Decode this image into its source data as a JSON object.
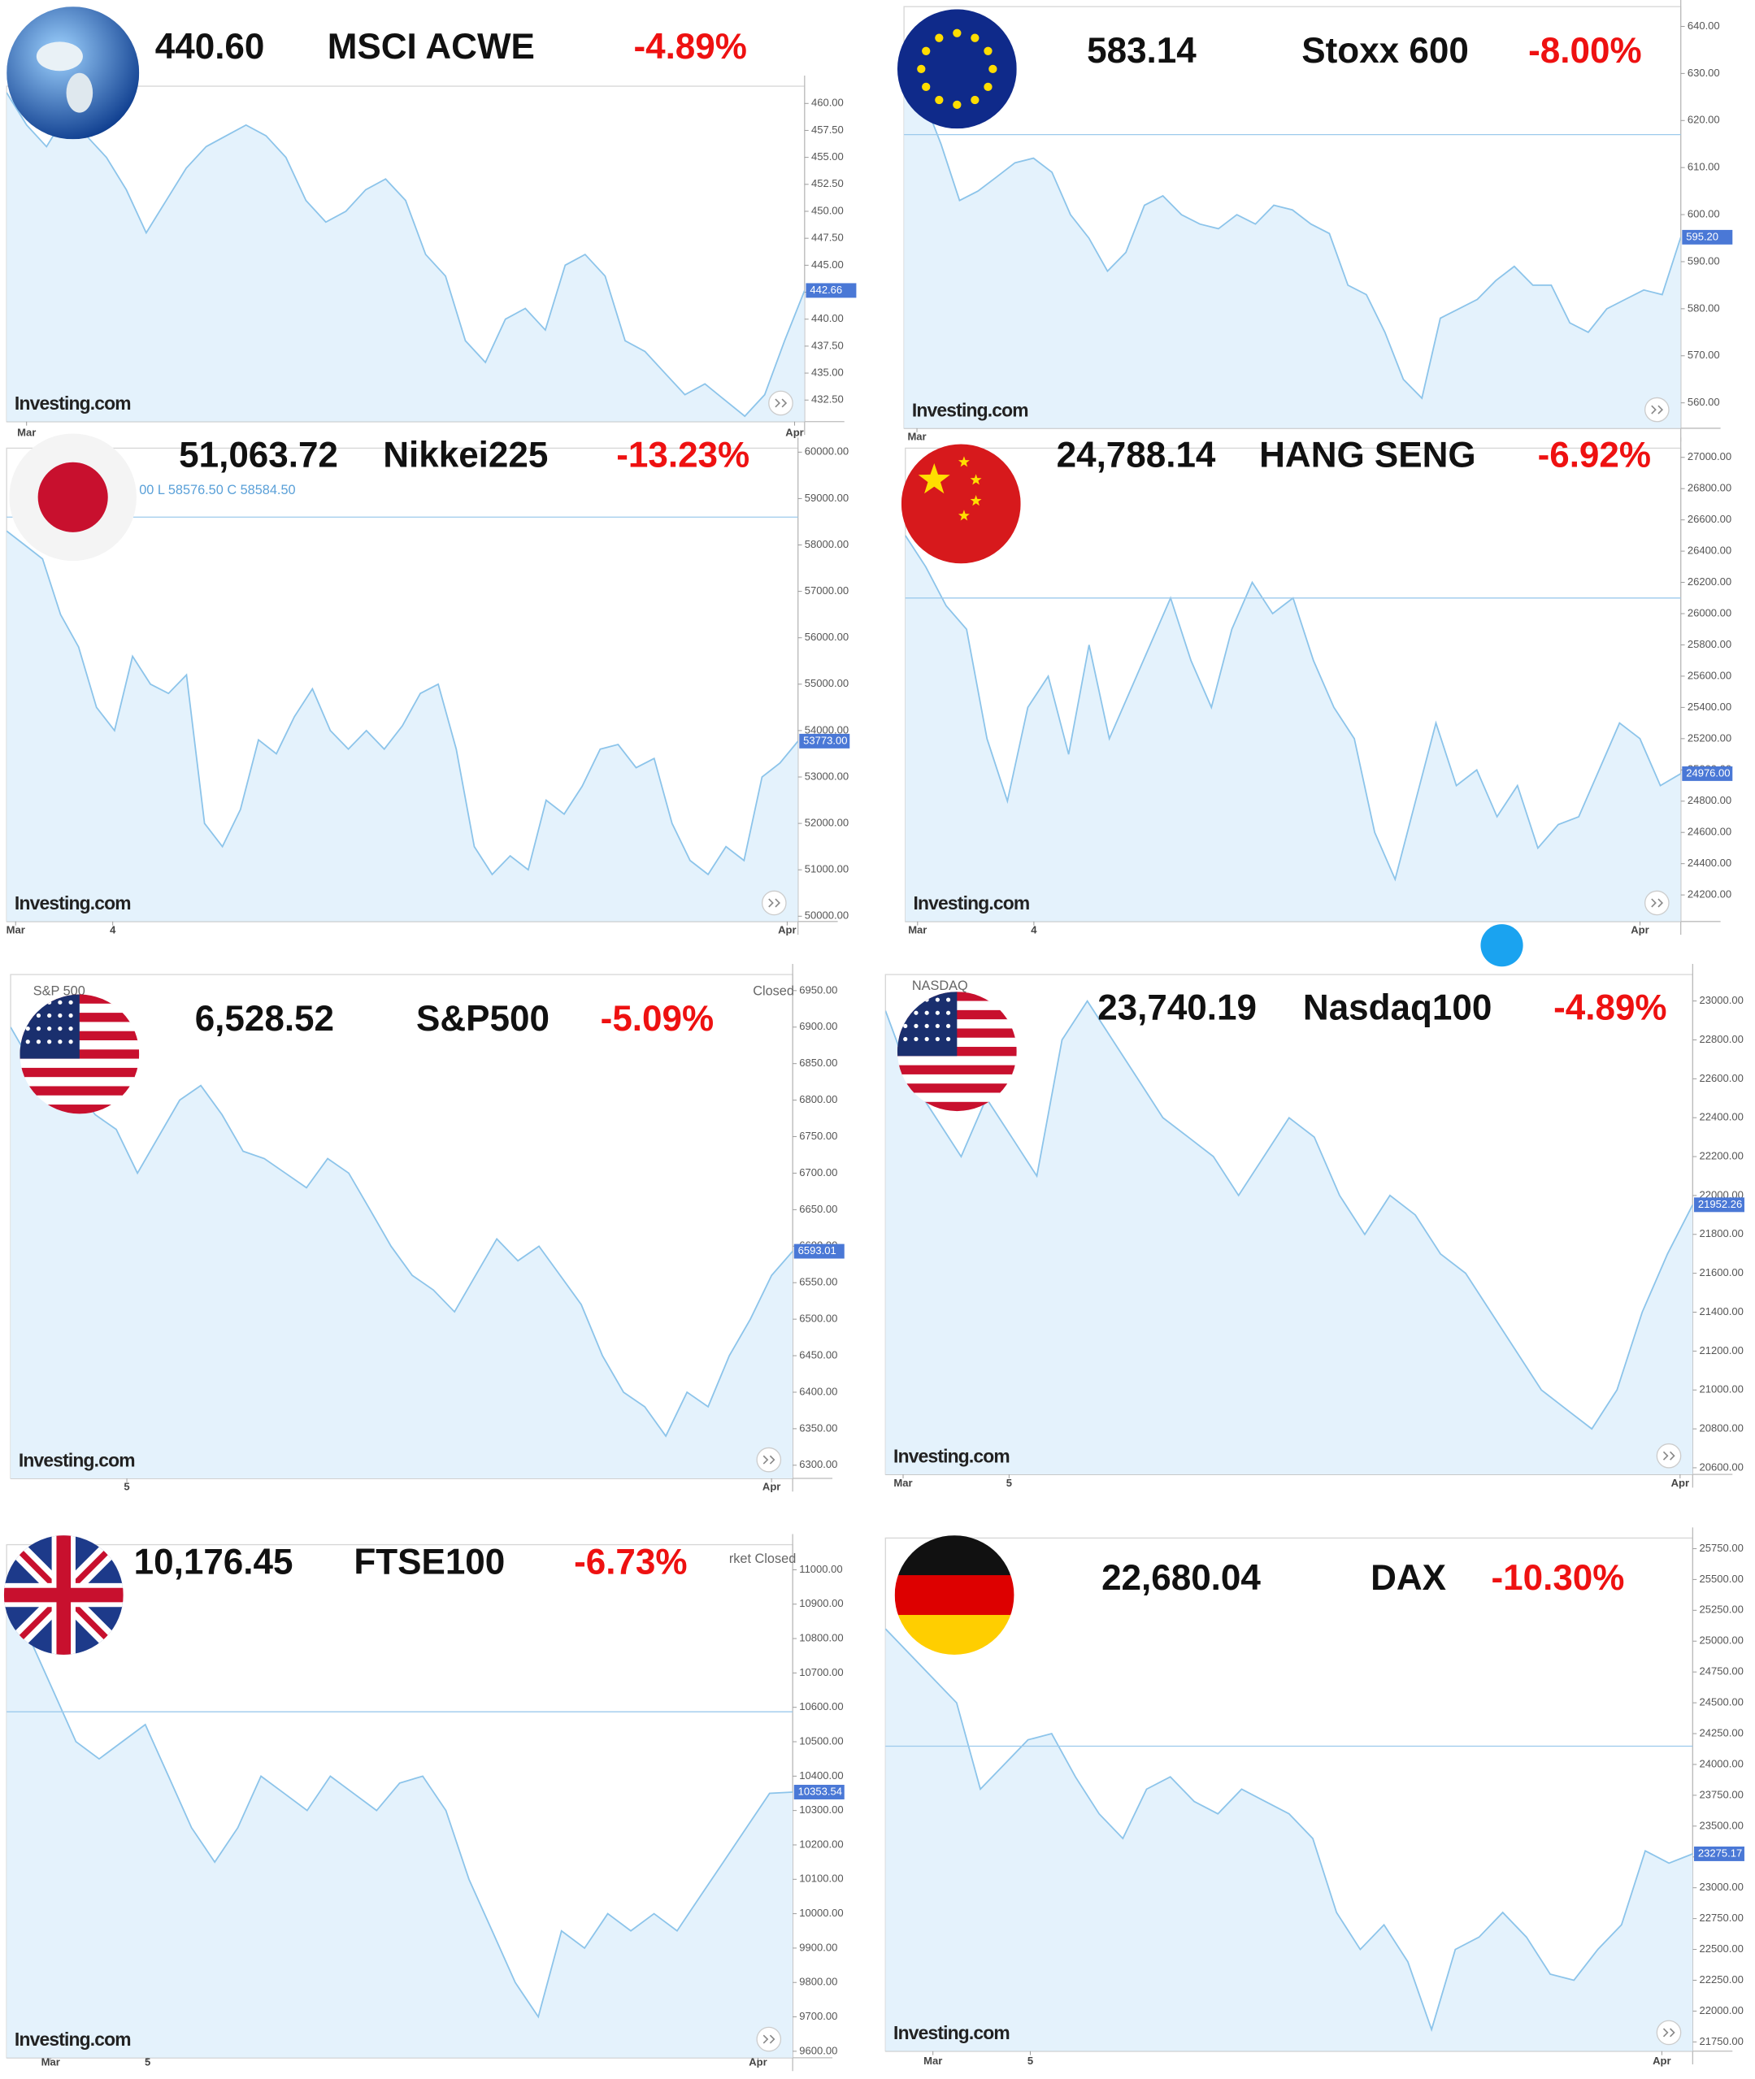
{
  "chart_data": [
    {
      "type": "area",
      "name": "MSCI ACWE",
      "price": "440.60",
      "change": "-4.89%",
      "source": "Investing.com",
      "values": [
        461,
        458,
        456,
        459,
        457,
        455,
        452,
        448,
        451,
        454,
        456,
        457,
        458,
        457,
        455,
        451,
        449,
        450,
        452,
        453,
        451,
        446,
        444,
        438,
        436,
        440,
        441,
        439,
        445,
        446,
        444,
        438,
        437,
        435,
        433,
        434,
        432.5,
        431,
        433,
        438,
        442.66
      ],
      "xlim": [
        0,
        40
      ],
      "xticks": [
        {
          "value": 1,
          "label": "Mar"
        },
        {
          "value": 39.5,
          "label": "Apr"
        }
      ],
      "ylim": [
        430.5,
        461.6
      ],
      "yticks": [
        {
          "value": 432.5,
          "label": "432.50"
        },
        {
          "value": 435,
          "label": "435.00"
        },
        {
          "value": 437.5,
          "label": "437.50"
        },
        {
          "value": 440,
          "label": "440.00"
        },
        {
          "value": 442.5,
          "label": "442.50"
        },
        {
          "value": 445,
          "label": "445.00"
        },
        {
          "value": 447.5,
          "label": "447.50"
        },
        {
          "value": 450,
          "label": "450.00"
        },
        {
          "value": 452.5,
          "label": "452.50"
        },
        {
          "value": 455,
          "label": "455.00"
        },
        {
          "value": 457.5,
          "label": "457.50"
        },
        {
          "value": 460,
          "label": "460.00"
        }
      ],
      "last_price": 442.66,
      "color": "#8cc4ea"
    },
    {
      "type": "area",
      "name": "Stoxx 600",
      "price": "583.14",
      "change": "-8.00%",
      "source": "Investing.com",
      "values": [
        630,
        625,
        615,
        603,
        605,
        608,
        611,
        612,
        609,
        600,
        595,
        588,
        592,
        602,
        604,
        600,
        598,
        597,
        600,
        598,
        602,
        601,
        598,
        596,
        585,
        583,
        575,
        565,
        561,
        578,
        580,
        582,
        586,
        589,
        585,
        585,
        577,
        575,
        580,
        582,
        584,
        583,
        595.2
      ],
      "xlim": [
        0,
        42
      ],
      "xticks": [
        {
          "value": 0.7,
          "label": "Mar"
        }
      ],
      "ylim": [
        554.6,
        644.2
      ],
      "yticks": [
        {
          "value": 560,
          "label": "560.00"
        },
        {
          "value": 570,
          "label": "570.00"
        },
        {
          "value": 580,
          "label": "580.00"
        },
        {
          "value": 590,
          "label": "590.00"
        },
        {
          "value": 600,
          "label": "600.00"
        },
        {
          "value": 610,
          "label": "610.00"
        },
        {
          "value": 620,
          "label": "620.00"
        },
        {
          "value": 630,
          "label": "630.00"
        },
        {
          "value": 640,
          "label": "640.00"
        }
      ],
      "last_price": {
        "value": 595.2,
        "label": "595.20"
      },
      "ref_line": 617,
      "color": "#8cc4ea"
    },
    {
      "type": "area",
      "name": "Nikkei225",
      "price": "51,063.72",
      "change": "-13.23%",
      "source": "Investing.com",
      "legend": "00   L 58576.50   C 58584.50",
      "values": [
        58300,
        58000,
        57700,
        56500,
        55800,
        54500,
        54000,
        55600,
        55000,
        54800,
        55200,
        52000,
        51500,
        52300,
        53800,
        53500,
        54300,
        54900,
        54000,
        53600,
        54000,
        53600,
        54100,
        54800,
        55000,
        53600,
        51500,
        50900,
        51300,
        51000,
        52500,
        52200,
        52800,
        53600,
        53700,
        53200,
        53400,
        52000,
        51200,
        50900,
        51500,
        51200,
        53000,
        53300,
        53773
      ],
      "xlim": [
        0,
        44
      ],
      "xticks": [
        {
          "value": 0.5,
          "label": "Mar"
        },
        {
          "value": 5.9,
          "label": "4"
        },
        {
          "value": 43.4,
          "label": "Apr"
        }
      ],
      "ylim": [
        49886,
        60086
      ],
      "yticks": [
        {
          "value": 50000,
          "label": "50000.00"
        },
        {
          "value": 51000,
          "label": "51000.00"
        },
        {
          "value": 52000,
          "label": "52000.00"
        },
        {
          "value": 53000,
          "label": "53000.00"
        },
        {
          "value": 54000,
          "label": "54000.00"
        },
        {
          "value": 55000,
          "label": "55000.00"
        },
        {
          "value": 56000,
          "label": "56000.00"
        },
        {
          "value": 57000,
          "label": "57000.00"
        },
        {
          "value": 58000,
          "label": "58000.00"
        },
        {
          "value": 59000,
          "label": "59000.00"
        },
        {
          "value": 60000,
          "label": "60000.00"
        }
      ],
      "last_price": {
        "value": 53773,
        "label": "53773.00"
      },
      "ref_line": 58600,
      "color": "#8cc4ea"
    },
    {
      "type": "area",
      "name": "HANG SENG",
      "price": "24,788.14",
      "change": "-6.92%",
      "source": "Investing.com",
      "values": [
        26500,
        26300,
        26050,
        25900,
        25200,
        24800,
        25400,
        25600,
        25100,
        25800,
        25200,
        25500,
        25800,
        26100,
        25700,
        25400,
        25900,
        26200,
        26000,
        26100,
        25700,
        25400,
        25200,
        24600,
        24300,
        24800,
        25300,
        24900,
        25000,
        24700,
        24900,
        24500,
        24650,
        24700,
        25000,
        25300,
        25200,
        24900,
        24976
      ],
      "xlim": [
        0,
        38
      ],
      "xticks": [
        {
          "value": 0.6,
          "label": "Mar"
        },
        {
          "value": 6.3,
          "label": "4"
        },
        {
          "value": 36,
          "label": "Apr"
        }
      ],
      "ylim": [
        24030,
        27059
      ],
      "yticks": [
        {
          "value": 24200,
          "label": "24200.00"
        },
        {
          "value": 24400,
          "label": "24400.00"
        },
        {
          "value": 24600,
          "label": "24600.00"
        },
        {
          "value": 24800,
          "label": "24800.00"
        },
        {
          "value": 25000,
          "label": "25000.00"
        },
        {
          "value": 25200,
          "label": "25200.00"
        },
        {
          "value": 25400,
          "label": "25400.00"
        },
        {
          "value": 25600,
          "label": "25600.00"
        },
        {
          "value": 25800,
          "label": "25800.00"
        },
        {
          "value": 26000,
          "label": "26000.00"
        },
        {
          "value": 26200,
          "label": "26200.00"
        },
        {
          "value": 26400,
          "label": "26400.00"
        },
        {
          "value": 26600,
          "label": "26600.00"
        },
        {
          "value": 26800,
          "label": "26800.00"
        },
        {
          "value": 27000,
          "label": "27000.00"
        }
      ],
      "last_price": {
        "value": 24976,
        "label": "24976.00"
      },
      "ref_line": 26100,
      "color": "#8cc4ea"
    },
    {
      "type": "area",
      "name": "S&P500",
      "price": "6,528.52",
      "change": "-5.09%",
      "source": "Investing.com",
      "legend": "S&P 500",
      "status": "Closed",
      "values": [
        6900,
        6850,
        6800,
        6820,
        6780,
        6760,
        6700,
        6750,
        6800,
        6820,
        6780,
        6730,
        6720,
        6700,
        6680,
        6720,
        6700,
        6650,
        6600,
        6560,
        6540,
        6510,
        6560,
        6610,
        6580,
        6600,
        6560,
        6520,
        6450,
        6400,
        6380,
        6340,
        6400,
        6380,
        6450,
        6500,
        6560,
        6593.01
      ],
      "xlim": [
        0,
        37
      ],
      "xticks": [
        {
          "value": 5.5,
          "label": "5"
        },
        {
          "value": 36,
          "label": "Apr"
        }
      ],
      "ylim": [
        6282,
        6972
      ],
      "yticks": [
        {
          "value": 6300,
          "label": "6300.00"
        },
        {
          "value": 6350,
          "label": "6350.00"
        },
        {
          "value": 6400,
          "label": "6400.00"
        },
        {
          "value": 6450,
          "label": "6450.00"
        },
        {
          "value": 6500,
          "label": "6500.00"
        },
        {
          "value": 6550,
          "label": "6550.00"
        },
        {
          "value": 6600,
          "label": "6600.00"
        },
        {
          "value": 6650,
          "label": "6650.00"
        },
        {
          "value": 6700,
          "label": "6700.00"
        },
        {
          "value": 6750,
          "label": "6750.00"
        },
        {
          "value": 6800,
          "label": "6800.00"
        },
        {
          "value": 6850,
          "label": "6850.00"
        },
        {
          "value": 6900,
          "label": "6900.00"
        },
        {
          "value": 6950,
          "label": "6950.00"
        }
      ],
      "last_price": 6593.01,
      "color": "#8cc4ea"
    },
    {
      "type": "area",
      "name": "Nasdaq100",
      "price": "23,740.19",
      "change": "-4.89%",
      "source": "Investing.com",
      "legend": "NASDAQ",
      "values": [
        22950,
        22600,
        22400,
        22200,
        22500,
        22300,
        22100,
        22800,
        23000,
        22800,
        22600,
        22400,
        22300,
        22200,
        22000,
        22200,
        22400,
        22300,
        22000,
        21800,
        22000,
        21900,
        21700,
        21600,
        21400,
        21200,
        21000,
        20900,
        20800,
        21000,
        21400,
        21700,
        21952.26
      ],
      "xlim": [
        0,
        32
      ],
      "xticks": [
        {
          "value": 0.7,
          "label": "Mar"
        },
        {
          "value": 4.9,
          "label": "5"
        },
        {
          "value": 31.5,
          "label": "Apr"
        }
      ],
      "ylim": [
        20566,
        23136
      ],
      "yticks": [
        {
          "value": 20600,
          "label": "20600.00"
        },
        {
          "value": 20800,
          "label": "20800.00"
        },
        {
          "value": 21000,
          "label": "21000.00"
        },
        {
          "value": 21200,
          "label": "21200.00"
        },
        {
          "value": 21400,
          "label": "21400.00"
        },
        {
          "value": 21600,
          "label": "21600.00"
        },
        {
          "value": 21800,
          "label": "21800.00"
        },
        {
          "value": 22000,
          "label": "22000.00"
        },
        {
          "value": 22200,
          "label": "22200.00"
        },
        {
          "value": 22400,
          "label": "22400.00"
        },
        {
          "value": 22600,
          "label": "22600.00"
        },
        {
          "value": 22800,
          "label": "22800.00"
        },
        {
          "value": 23000,
          "label": "23000.00"
        }
      ],
      "last_price": 21952.26,
      "color": "#8cc4ea"
    },
    {
      "type": "area",
      "name": "FTSE100",
      "price": "10,176.45",
      "change": "-6.73%",
      "source": "Investing.com",
      "status": "rket Closed",
      "values": [
        10900,
        10800,
        10650,
        10500,
        10450,
        10500,
        10550,
        10400,
        10250,
        10150,
        10250,
        10400,
        10350,
        10300,
        10400,
        10350,
        10300,
        10380,
        10400,
        10300,
        10100,
        9950,
        9800,
        9700,
        9950,
        9900,
        10000,
        9950,
        10000,
        9950,
        10050,
        10150,
        10250,
        10350,
        10353.54
      ],
      "xlim": [
        0,
        34
      ],
      "xticks": [
        {
          "value": 1.9,
          "label": "Mar"
        },
        {
          "value": 6.1,
          "label": "5"
        },
        {
          "value": 32.5,
          "label": "Apr"
        }
      ],
      "ylim": [
        9581,
        11073
      ],
      "yticks": [
        {
          "value": 9600,
          "label": "9600.00"
        },
        {
          "value": 9700,
          "label": "9700.00"
        },
        {
          "value": 9800,
          "label": "9800.00"
        },
        {
          "value": 9900,
          "label": "9900.00"
        },
        {
          "value": 10000,
          "label": "10000.00"
        },
        {
          "value": 10100,
          "label": "10100.00"
        },
        {
          "value": 10200,
          "label": "10200.00"
        },
        {
          "value": 10300,
          "label": "10300.00"
        },
        {
          "value": 10400,
          "label": "10400.00"
        },
        {
          "value": 10500,
          "label": "10500.00"
        },
        {
          "value": 10600,
          "label": "10600.00"
        },
        {
          "value": 10700,
          "label": "10700.00"
        },
        {
          "value": 10800,
          "label": "10800.00"
        },
        {
          "value": 10900,
          "label": "10900.00"
        },
        {
          "value": 11000,
          "label": "11000.00"
        }
      ],
      "last_price": 10353.54,
      "ref_line": 10587,
      "color": "#8cc4ea"
    },
    {
      "type": "area",
      "name": "DAX",
      "price": "22,680.04",
      "change": "-10.30%",
      "source": "Investing.com",
      "values": [
        25100,
        24900,
        24700,
        24500,
        23800,
        24000,
        24200,
        24250,
        23900,
        23600,
        23400,
        23800,
        23900,
        23700,
        23600,
        23800,
        23700,
        23600,
        23400,
        22800,
        22500,
        22700,
        22400,
        21850,
        22500,
        22600,
        22800,
        22600,
        22300,
        22250,
        22500,
        22700,
        23300,
        23200,
        23275.17
      ],
      "xlim": [
        0,
        34
      ],
      "xticks": [
        {
          "value": 2,
          "label": "Mar"
        },
        {
          "value": 6.1,
          "label": "5"
        },
        {
          "value": 32.7,
          "label": "Apr"
        }
      ],
      "ylim": [
        21675,
        25836
      ],
      "yticks": [
        {
          "value": 21750,
          "label": "21750.00"
        },
        {
          "value": 22000,
          "label": "22000.00"
        },
        {
          "value": 22250,
          "label": "22250.00"
        },
        {
          "value": 22500,
          "label": "22500.00"
        },
        {
          "value": 22750,
          "label": "22750.00"
        },
        {
          "value": 23000,
          "label": "23000.00"
        },
        {
          "value": 23250,
          "label": "23250.00"
        },
        {
          "value": 23500,
          "label": "23500.00"
        },
        {
          "value": 23750,
          "label": "23750.00"
        },
        {
          "value": 24000,
          "label": "24000.00"
        },
        {
          "value": 24250,
          "label": "24250.00"
        },
        {
          "value": 24500,
          "label": "24500.00"
        },
        {
          "value": 24750,
          "label": "24750.00"
        },
        {
          "value": 25000,
          "label": "25000.00"
        },
        {
          "value": 25250,
          "label": "25250.00"
        },
        {
          "value": 25500,
          "label": "25500.00"
        },
        {
          "value": 25750,
          "label": "25750.00"
        }
      ],
      "last_price": 23275.17,
      "ref_line": 24148,
      "color": "#8cc4ea"
    }
  ]
}
